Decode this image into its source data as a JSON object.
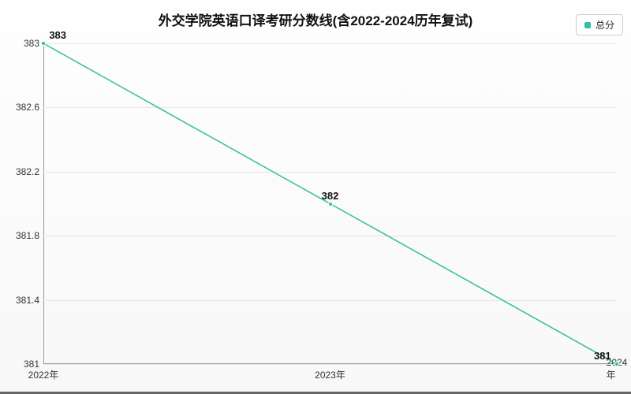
{
  "chart": {
    "type": "line",
    "title": "外交学院英语口译考研分数线(含2022-2024历年复试)",
    "title_fontsize": 17,
    "legend": {
      "label": "总分",
      "marker_color": "#2fbfa0"
    },
    "series": {
      "color": "#2fbfa0",
      "line_width": 1.5,
      "marker_size": 6,
      "categories": [
        "2022年",
        "2023年",
        "2024年"
      ],
      "values": [
        383,
        382,
        381
      ],
      "data_labels": [
        "383",
        "382",
        "381"
      ]
    },
    "y_axis": {
      "min": 381,
      "max": 383,
      "ticks": [
        381,
        381.4,
        381.8,
        382.2,
        382.6,
        383
      ],
      "tick_labels": [
        "381",
        "381.4",
        "381.8",
        "382.2",
        "382.6",
        "383"
      ]
    },
    "x_axis": {
      "tick_labels": [
        "2022年",
        "2023年",
        "2024年"
      ]
    },
    "background_gradient_top": "#fefefe",
    "background_gradient_bottom": "#f8f8f8",
    "grid_color": "#e5e5e5",
    "axis_color": "#999999",
    "text_color": "#333333",
    "label_fontsize": 12
  }
}
